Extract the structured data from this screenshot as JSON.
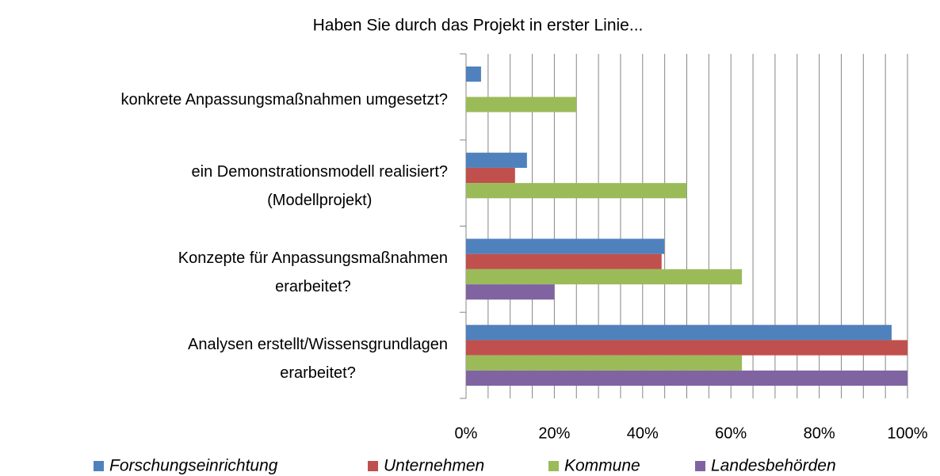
{
  "chart_data": {
    "type": "barh",
    "title": "Haben Sie durch das Projekt in erster Linie...",
    "categories": [
      "konkrete Anpassungsmaßnahmen umgesetzt?",
      "ein Demonstrationsmodell realisiert?\n(Modellprojekt)",
      "Konzepte für Anpassungsmaßnahmen\nerarbeitet?",
      "Analysen erstellt/Wissensgrundlagen\nerarbeitet?"
    ],
    "series": [
      {
        "name": "Forschungseinrichtung",
        "color": "#4f81bd",
        "values": [
          3.4,
          13.8,
          44.9,
          96.4
        ]
      },
      {
        "name": "Unternehmen",
        "color": "#c0504d",
        "values": [
          0,
          11.1,
          44.3,
          100
        ]
      },
      {
        "name": "Kommune",
        "color": "#9bbb59",
        "values": [
          25,
          50,
          62.5,
          62.5
        ]
      },
      {
        "name": "Landesbehörden",
        "color": "#8064a2",
        "values": [
          0,
          0,
          20,
          100
        ]
      }
    ],
    "xlim": [
      0,
      100
    ],
    "xticks": [
      {
        "value": 0,
        "label": "0%"
      },
      {
        "value": 20,
        "label": "20%"
      },
      {
        "value": 40,
        "label": "40%"
      },
      {
        "value": 60,
        "label": "60%"
      },
      {
        "value": 80,
        "label": "80%"
      },
      {
        "value": 100,
        "label": "100%"
      }
    ],
    "xgridlines": [
      5,
      10,
      15,
      20,
      25,
      30,
      35,
      40,
      45,
      50,
      55,
      60,
      65,
      70,
      75,
      80,
      85,
      90,
      95,
      100
    ],
    "grid": true,
    "legend": "bottom"
  }
}
